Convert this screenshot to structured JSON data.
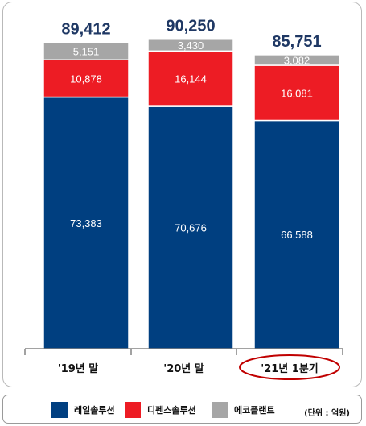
{
  "chart_data": {
    "type": "bar",
    "stacked": true,
    "categories": [
      "'19년 말",
      "'20년 말",
      "'21년 1분기"
    ],
    "series": [
      {
        "name": "레일솔루션",
        "values": [
          73383,
          70676,
          66588
        ],
        "color": "#003f80"
      },
      {
        "name": "디펜스솔루션",
        "values": [
          10878,
          16144,
          16081
        ],
        "color": "#ed1c24"
      },
      {
        "name": "에코플랜트",
        "values": [
          5151,
          3430,
          3082
        ],
        "color": "#a6a6a6"
      }
    ],
    "value_labels": [
      [
        "73,383",
        "70,676",
        "66,588"
      ],
      [
        "10,878",
        "16,144",
        "16,081"
      ],
      [
        "5,151",
        "3,430",
        "3,082"
      ]
    ],
    "totals": [
      "89,412",
      "90,250",
      "85,751"
    ],
    "total_values": [
      89412,
      90250,
      85751
    ],
    "highlighted_category": 2,
    "ylim": [
      0,
      97000
    ],
    "grid": false,
    "legend_position": "bottom"
  },
  "unit_note": "(단위 : 억원)",
  "colors": {
    "total_label": "#1f3864",
    "highlight_ring": "#c00000",
    "axis": "#444444"
  }
}
